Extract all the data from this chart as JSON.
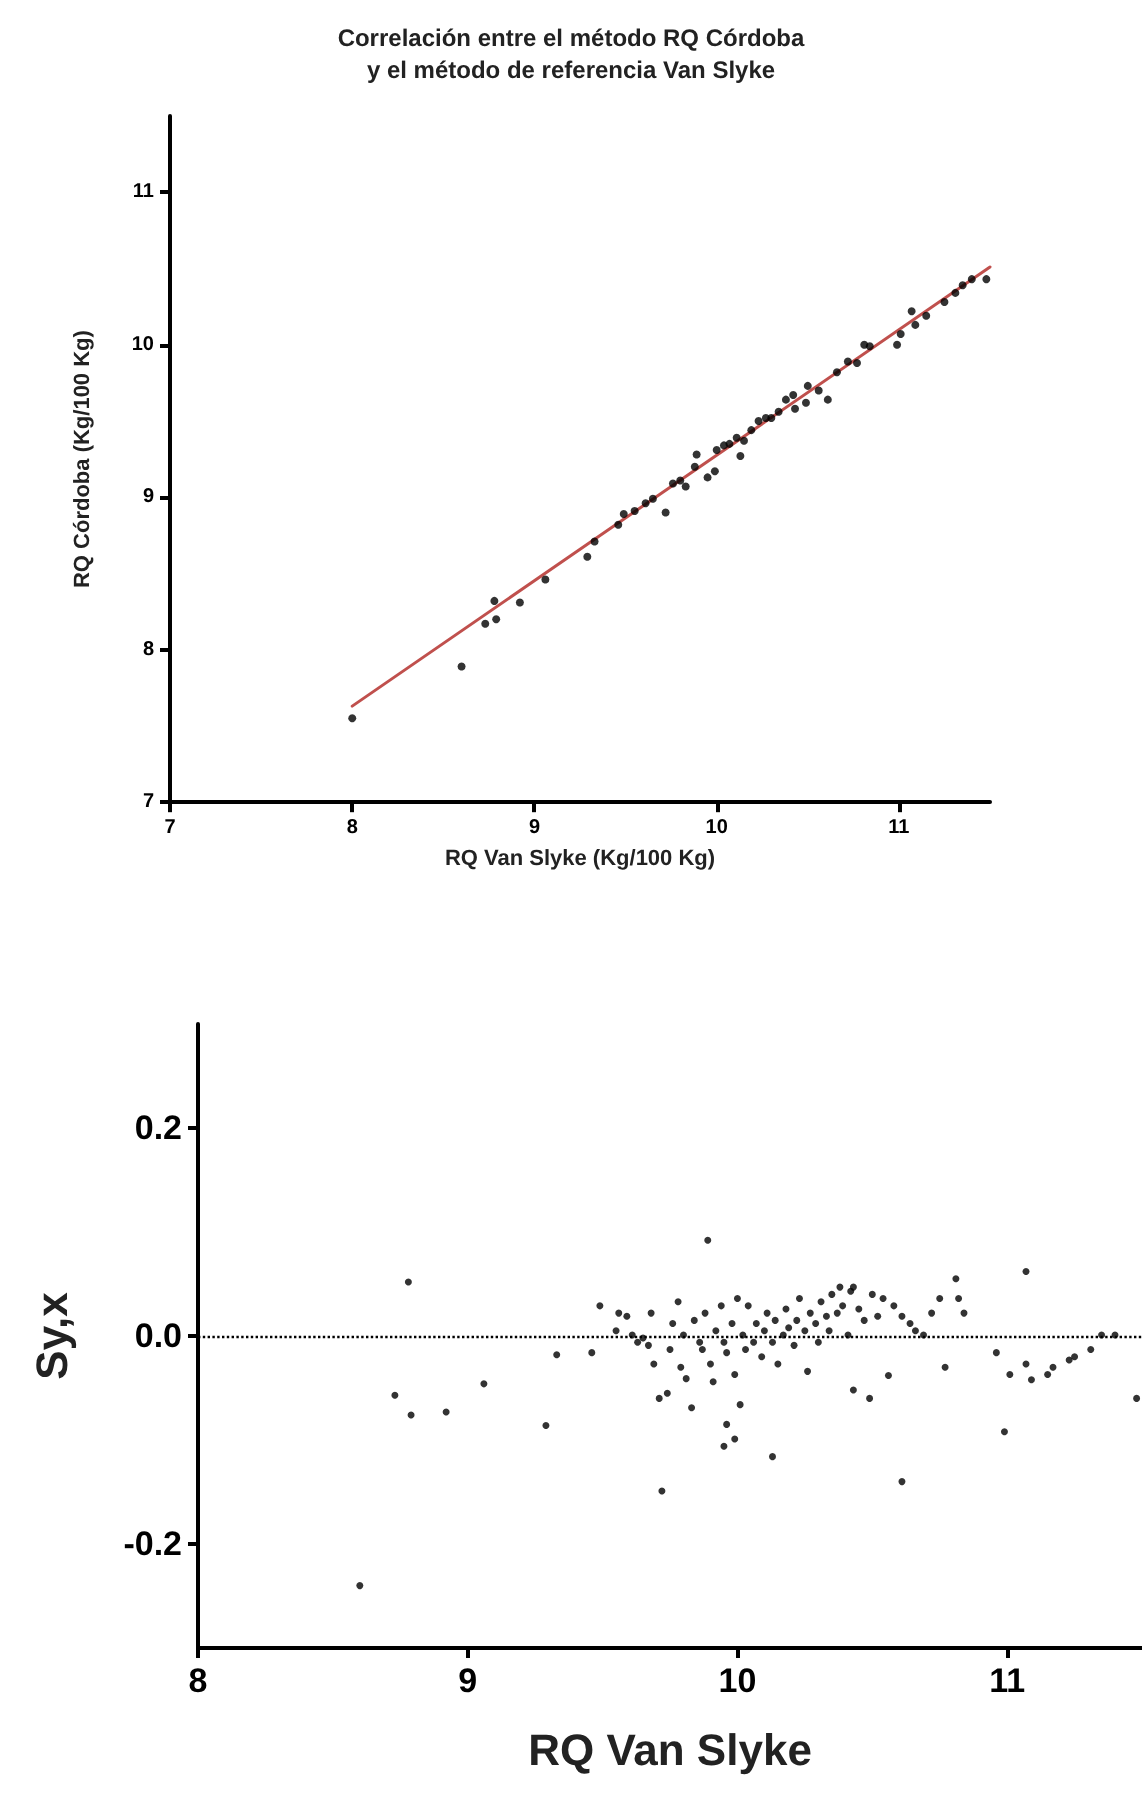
{
  "chart_data": [
    {
      "type": "scatter",
      "title": "Correlación entre el método RQ Córdoba\ny el método de referencia Van Slyke",
      "xlabel": "RQ Van Slyke (Kg/100 Kg)",
      "ylabel": "RQ Córdoba (Kg/100 Kg)",
      "xlim": [
        7,
        11.5
      ],
      "ylim": [
        7,
        11.5
      ],
      "xticks": [
        7,
        8,
        9,
        10,
        11
      ],
      "yticks": [
        7,
        8,
        9,
        10,
        11
      ],
      "grid": false,
      "marker": "circle",
      "series": [
        {
          "color": "#000000",
          "x": [
            8.0,
            8.6,
            8.73,
            8.78,
            8.79,
            8.92,
            9.06,
            9.29,
            9.33,
            9.46,
            9.49,
            9.55,
            9.61,
            9.65,
            9.72,
            9.76,
            9.8,
            9.83,
            9.89,
            9.88,
            9.95,
            9.99,
            10.0,
            10.04,
            10.07,
            10.11,
            10.13,
            10.15,
            10.19,
            10.23,
            10.27,
            10.3,
            10.34,
            10.38,
            10.42,
            10.43,
            10.49,
            10.5,
            10.56,
            10.61,
            10.66,
            10.72,
            10.77,
            10.81,
            10.84,
            10.99,
            11.01,
            11.07,
            11.09,
            11.15,
            11.25,
            11.31,
            11.35,
            11.4,
            11.48
          ],
          "values": [
            7.55,
            7.89,
            8.17,
            8.32,
            8.2,
            8.31,
            8.46,
            8.61,
            8.71,
            8.82,
            8.89,
            8.91,
            8.96,
            8.99,
            8.9,
            9.09,
            9.11,
            9.07,
            9.28,
            9.2,
            9.13,
            9.17,
            9.31,
            9.34,
            9.35,
            9.39,
            9.27,
            9.37,
            9.44,
            9.5,
            9.52,
            9.52,
            9.56,
            9.64,
            9.67,
            9.58,
            9.62,
            9.73,
            9.7,
            9.64,
            9.82,
            9.89,
            9.88,
            10.0,
            9.99,
            10.0,
            10.07,
            10.22,
            10.13,
            10.19,
            10.28,
            10.34,
            10.39,
            10.43,
            10.43
          ]
        },
        {
          "type": "line",
          "color": "#c0504d",
          "marker": "none",
          "x": [
            8,
            11.5
          ],
          "values": [
            7.63,
            10.51
          ]
        }
      ]
    },
    {
      "type": "scatter",
      "xlabel": "RQ Van Slyke",
      "ylabel": "Sy,x",
      "xlim": [
        8,
        11.5
      ],
      "ylim": [
        -0.3,
        0.3
      ],
      "xticks": [
        8,
        9,
        10,
        11
      ],
      "yticks": [
        -0.2,
        {
          "value": 0,
          "label": "0.0"
        },
        0.2
      ],
      "grid": false,
      "marker": "circle",
      "ref_lines": [
        {
          "axis": "y",
          "value": 0,
          "label": null,
          "color": "#000000",
          "line_style": "dotted"
        }
      ],
      "series": [
        {
          "color": "#000000",
          "x": [
            8.6,
            8.78,
            8.73,
            8.79,
            8.92,
            9.06,
            9.29,
            9.33,
            9.46,
            9.49,
            9.89,
            9.72,
            10.13,
            9.95,
            9.99,
            9.96,
            10.01,
            10.61,
            10.43,
            10.49,
            10.56,
            10.77,
            10.81,
            10.82,
            10.84,
            11.07,
            10.99,
            10.96,
            11.01,
            11.07,
            11.09,
            11.15,
            11.17,
            11.25,
            11.31,
            11.35,
            11.4,
            11.48,
            11.23,
            9.55,
            9.56,
            9.59,
            9.61,
            9.63,
            9.65,
            9.67,
            9.68,
            9.69,
            9.71,
            9.74,
            9.75,
            9.76,
            9.78,
            9.79,
            9.8,
            9.81,
            9.83,
            9.84,
            9.86,
            9.87,
            9.88,
            9.9,
            9.91,
            9.92,
            9.94,
            9.95,
            9.96,
            9.98,
            9.99,
            10.0,
            10.02,
            10.03,
            10.04,
            10.06,
            10.07,
            10.09,
            10.1,
            10.11,
            10.13,
            10.14,
            10.15,
            10.17,
            10.18,
            10.19,
            10.21,
            10.22,
            10.23,
            10.25,
            10.26,
            10.27,
            10.29,
            10.3,
            10.31,
            10.33,
            10.34,
            10.35,
            10.37,
            10.38,
            10.39,
            10.41,
            10.42,
            10.43,
            10.45,
            10.47,
            10.5,
            10.52,
            10.54,
            10.58,
            10.61,
            10.64,
            10.66,
            10.69,
            10.72,
            10.75
          ],
          "values": [
            -0.24,
            0.052,
            -0.057,
            -0.076,
            -0.073,
            -0.046,
            -0.086,
            -0.018,
            -0.016,
            0.029,
            0.092,
            -0.149,
            -0.116,
            -0.106,
            -0.099,
            -0.085,
            -0.066,
            -0.14,
            -0.052,
            -0.06,
            -0.038,
            -0.03,
            0.055,
            0.036,
            0.022,
            0.062,
            -0.092,
            -0.016,
            -0.037,
            -0.027,
            -0.042,
            -0.037,
            -0.03,
            -0.02,
            -0.013,
            0.001,
            0.001,
            -0.06,
            -0.023,
            0.005,
            0.022,
            0.019,
            0.001,
            -0.006,
            -0.002,
            -0.009,
            0.022,
            -0.027,
            -0.06,
            -0.055,
            -0.013,
            0.012,
            0.033,
            -0.03,
            0.001,
            -0.041,
            -0.069,
            0.015,
            -0.006,
            -0.013,
            0.022,
            -0.027,
            -0.044,
            0.005,
            0.029,
            -0.006,
            -0.016,
            0.012,
            -0.037,
            0.036,
            0.001,
            -0.013,
            0.029,
            -0.006,
            0.012,
            -0.02,
            0.005,
            0.022,
            -0.006,
            0.015,
            -0.027,
            0.001,
            0.026,
            0.008,
            -0.009,
            0.015,
            0.036,
            0.005,
            -0.034,
            0.022,
            0.012,
            -0.006,
            0.033,
            0.019,
            0.005,
            0.04,
            0.022,
            0.047,
            0.029,
            0.001,
            0.043,
            0.047,
            0.026,
            0.015,
            0.04,
            0.019,
            0.036,
            0.029,
            0.019,
            0.012,
            0.005,
            0.001,
            0.022,
            0.036
          ]
        }
      ]
    }
  ]
}
